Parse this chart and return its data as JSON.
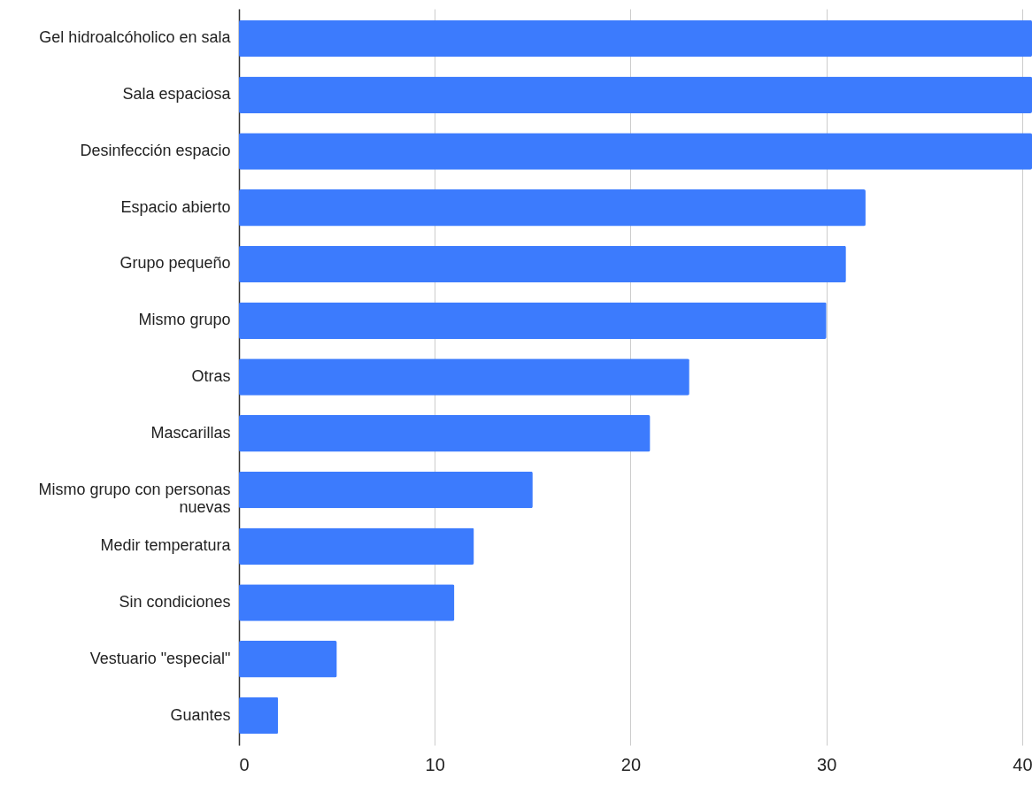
{
  "chart_data": {
    "type": "bar",
    "orientation": "horizontal",
    "categories": [
      "Gel hidroalcóholico en sala",
      "Sala espaciosa",
      "Desinfección espacio",
      "Espacio abierto",
      "Grupo pequeño",
      "Mismo grupo",
      "Otras",
      "Mascarillas",
      "Mismo grupo con personas nuevas",
      "Medir temperatura",
      "Sin condiciones",
      "Vestuario \"especial\"",
      "Guantes"
    ],
    "values": [
      40.5,
      40.5,
      40.5,
      32,
      31,
      30,
      23,
      21,
      15,
      12,
      11,
      5,
      2
    ],
    "color": "#3c7bfd",
    "xlim": [
      0,
      40.5
    ],
    "xticks": [
      0,
      10,
      20,
      30,
      40
    ],
    "grid": "x"
  }
}
